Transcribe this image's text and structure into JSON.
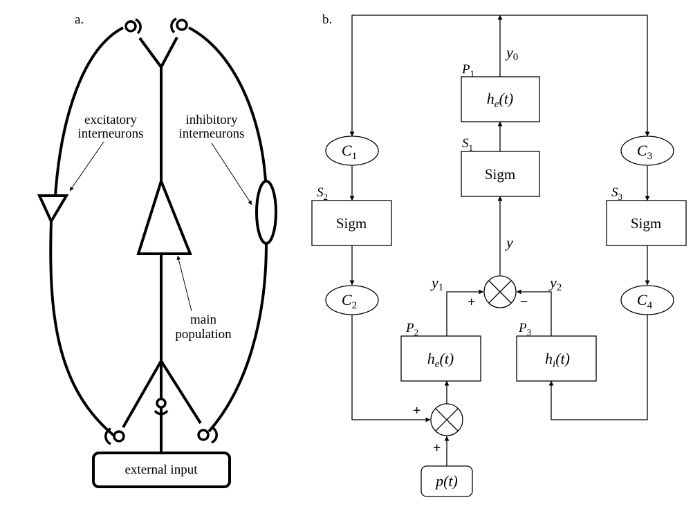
{
  "panel_a": {
    "label": "a.",
    "excitatory_line1": "excitatory",
    "excitatory_line2": "interneurons",
    "inhibitory_line1": "inhibitory",
    "inhibitory_line2": "interneurons",
    "main_line1": "main",
    "main_line2": "population",
    "external_input": "external input"
  },
  "panel_b": {
    "label": "b.",
    "p1": {
      "name": "P",
      "sub": "1",
      "func": "h",
      "func_sub": "e",
      "arg": "(t)"
    },
    "s1": {
      "name": "S",
      "sub": "1",
      "text": "Sigm"
    },
    "s2": {
      "name": "S",
      "sub": "2",
      "text": "Sigm"
    },
    "s3": {
      "name": "S",
      "sub": "3",
      "text": "Sigm"
    },
    "p2": {
      "name": "P",
      "sub": "2",
      "func": "h",
      "func_sub": "e",
      "arg": "(t)"
    },
    "p3": {
      "name": "P",
      "sub": "3",
      "func": "h",
      "func_sub": "i",
      "arg": "(t)"
    },
    "c1": {
      "name": "C",
      "sub": "1"
    },
    "c2": {
      "name": "C",
      "sub": "2"
    },
    "c3": {
      "name": "C",
      "sub": "3"
    },
    "c4": {
      "name": "C",
      "sub": "4"
    },
    "y0": {
      "name": "y",
      "sub": "0"
    },
    "y": "y",
    "y1": {
      "name": "y",
      "sub": "1"
    },
    "y2": {
      "name": "y",
      "sub": "2"
    },
    "plus": "+",
    "minus": "−",
    "input": {
      "func": "p",
      "arg": "(t)"
    }
  }
}
